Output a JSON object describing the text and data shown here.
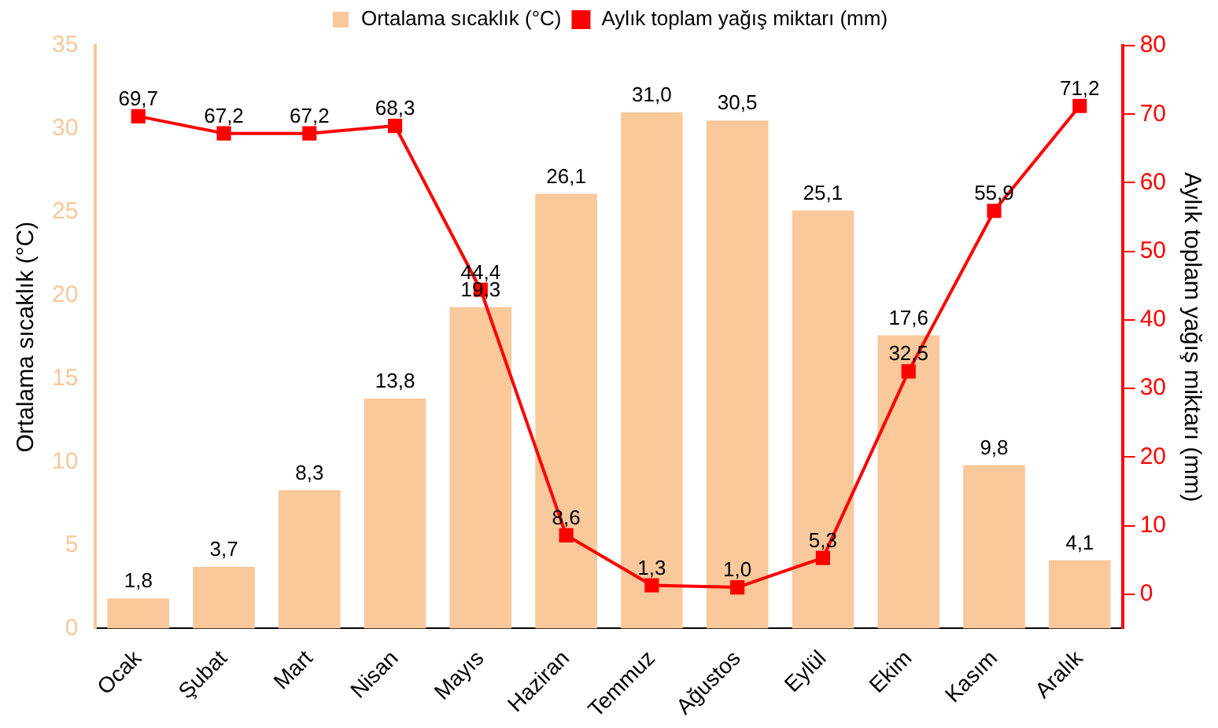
{
  "chart_data": {
    "type": "bar",
    "categories": [
      "Ocak",
      "Şubat",
      "Mart",
      "Nisan",
      "Mayıs",
      "Haziran",
      "Temmuz",
      "Ağustos",
      "Eylül",
      "Ekim",
      "Kasım",
      "Aralık"
    ],
    "series": [
      {
        "name": "Ortalama sıcaklık (°C)",
        "color": "#f9c89b",
        "values": [
          1.8,
          3.7,
          8.3,
          13.8,
          19.3,
          26.1,
          31.0,
          30.5,
          25.1,
          17.6,
          9.8,
          4.1
        ],
        "value_labels": [
          "1,8",
          "3,7",
          "8,3",
          "13,8",
          "19,3",
          "26,1",
          "31,0",
          "30,5",
          "25,1",
          "17,6",
          "9,8",
          "4,1"
        ]
      },
      {
        "name": "Aylık toplam yağış miktarı (mm)",
        "type": "line",
        "axis": "y2",
        "color": "#ff0000",
        "values": [
          69.7,
          67.2,
          67.2,
          68.3,
          44.4,
          8.6,
          1.3,
          1.0,
          5.3,
          32.5,
          55.9,
          71.2
        ],
        "value_labels": [
          "69,7",
          "67,2",
          "67,2",
          "68,3",
          "44,4",
          "8,6",
          "1,3",
          "1,0",
          "5,3",
          "32,5",
          "55,9",
          "71,2"
        ]
      }
    ],
    "ylabel": "Ortalama sıcaklık (°C)",
    "y2label": "Aylık toplam yağış miktarı (mm)",
    "ylim": [
      0,
      35
    ],
    "yticks": [
      0,
      5,
      10,
      15,
      20,
      25,
      30,
      35
    ],
    "y2lim": [
      -5,
      80
    ],
    "y2ticks": [
      0,
      10,
      20,
      30,
      40,
      50,
      60,
      70,
      80
    ],
    "legend": "top",
    "marker": "square",
    "line_style": "solid",
    "grid": false
  }
}
